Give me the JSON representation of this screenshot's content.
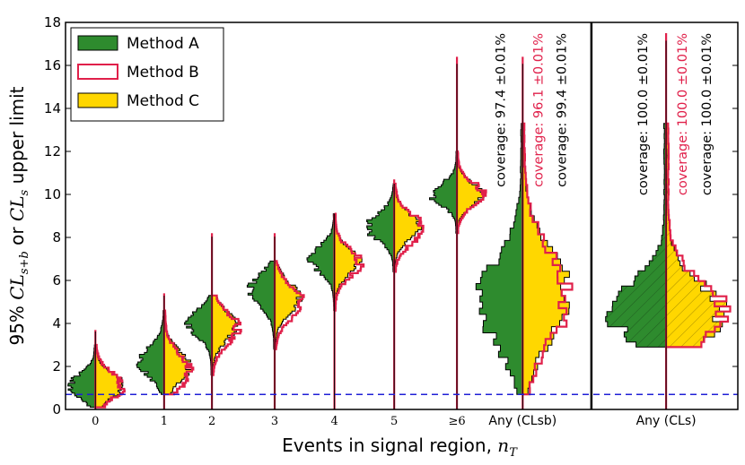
{
  "chart_data": {
    "type": "violin-histogram",
    "title": "",
    "ylabel": {
      "main": "95% ",
      "var1": "CL",
      "sub1": "s+b",
      "or": " or ",
      "var2": "CL",
      "sub2": "s",
      "tail": " upper limit"
    },
    "xlabel": {
      "main": "Events in signal region, ",
      "var": "n",
      "sub": "T"
    },
    "ylim": [
      0,
      18
    ],
    "yticks": [
      0,
      2,
      4,
      6,
      8,
      10,
      12,
      14,
      16,
      18
    ],
    "reference_line": {
      "y": 0.7,
      "color": "#1f1fd6",
      "style": "dashed"
    },
    "colors": {
      "A": "#2e8b2e",
      "B": "#e0204a",
      "C": "#ffd700",
      "edge": "#000000"
    },
    "legend": [
      {
        "key": "A",
        "label": "Method A"
      },
      {
        "key": "B",
        "label": "Method B"
      },
      {
        "key": "C",
        "label": "Method C"
      }
    ],
    "categories": [
      {
        "label": "0",
        "center": 0.95,
        "width": 1.0,
        "bmin": 0.1,
        "bmax": 3.0,
        "B_max": 3.7,
        "A": {
          "mode": 1.1,
          "spread": 0.55
        },
        "C": {
          "mode": 1.1,
          "spread": 0.55
        },
        "B": {
          "mode": 1.1,
          "spread": 0.6
        }
      },
      {
        "label": "1",
        "center": 2.1,
        "width": 1.0,
        "bmin": 0.7,
        "bmax": 4.6,
        "B_max": 5.4,
        "A": {
          "mode": 2.2,
          "spread": 0.7
        },
        "C": {
          "mode": 2.0,
          "spread": 0.7
        },
        "B": {
          "mode": 1.8,
          "spread": 0.8
        }
      },
      {
        "label": "2",
        "center": 2.9,
        "width": 1.0,
        "bmin": 1.6,
        "bmax": 5.3,
        "B_max": 8.2,
        "A": {
          "mode": 4.0,
          "spread": 0.6
        },
        "C": {
          "mode": 3.9,
          "spread": 0.7
        },
        "B": {
          "mode": 3.8,
          "spread": 0.75
        }
      },
      {
        "label": "3",
        "center": 3.95,
        "width": 1.0,
        "bmin": 2.8,
        "bmax": 6.9,
        "B_max": 8.2,
        "A": {
          "mode": 5.5,
          "spread": 0.7
        },
        "C": {
          "mode": 5.2,
          "spread": 0.7
        },
        "B": {
          "mode": 5.0,
          "spread": 0.75
        }
      },
      {
        "label": "4",
        "center": 4.95,
        "width": 1.0,
        "bmin": 4.6,
        "bmax": 9.1,
        "B_max": 9.1,
        "A": {
          "mode": 7.0,
          "spread": 0.6
        },
        "C": {
          "mode": 6.9,
          "spread": 0.6
        },
        "B": {
          "mode": 6.8,
          "spread": 0.65
        }
      },
      {
        "label": "5",
        "center": 5.95,
        "width": 1.0,
        "bmin": 6.4,
        "bmax": 10.5,
        "B_max": 10.7,
        "A": {
          "mode": 8.5,
          "spread": 0.6
        },
        "C": {
          "mode": 8.5,
          "spread": 0.6
        },
        "B": {
          "mode": 8.4,
          "spread": 0.65
        }
      },
      {
        "label": "≥6",
        "center": 7.0,
        "width": 1.0,
        "bmin": 8.2,
        "bmax": 12.0,
        "B_max": 16.4,
        "A": {
          "mode": 10.0,
          "spread": 0.5
        },
        "C": {
          "mode": 10.0,
          "spread": 0.5
        },
        "B": {
          "mode": 10.0,
          "spread": 0.55
        }
      },
      {
        "label": "Any (CLsb)",
        "center": 8.1,
        "width": 1.7,
        "bmin": 0.7,
        "bmax": 13.3,
        "B_max": 16.4,
        "A": {
          "mode": 5.0,
          "spread": 2.0
        },
        "C": {
          "mode": 5.3,
          "spread": 2.0
        },
        "B": {
          "mode": 5.2,
          "spread": 2.1
        }
      },
      {
        "label": "Any (CLs)",
        "center": 10.5,
        "width": 2.2,
        "bmin": 2.9,
        "bmax": 13.3,
        "B_max": 17.5,
        "A": {
          "mode": 4.5,
          "spread": 1.4
        },
        "C": {
          "mode": 4.5,
          "spread": 1.4
        },
        "B": {
          "mode": 4.5,
          "spread": 1.45
        }
      }
    ],
    "coverage_groups": [
      {
        "category": "Any (CLsb)",
        "entries": [
          {
            "key": "A",
            "text": "coverage: 97.4 ±0.01%"
          },
          {
            "key": "B",
            "text": "coverage: 96.1 ±0.01%"
          },
          {
            "key": "C",
            "text": "coverage: 99.4 ±0.01%"
          }
        ]
      },
      {
        "category": "Any (CLs)",
        "entries": [
          {
            "key": "A",
            "text": "coverage: 100.0 ±0.01%"
          },
          {
            "key": "B",
            "text": "coverage: 100.0 ±0.01%"
          },
          {
            "key": "C",
            "text": "coverage: 100.0 ±0.01%"
          }
        ]
      }
    ]
  }
}
